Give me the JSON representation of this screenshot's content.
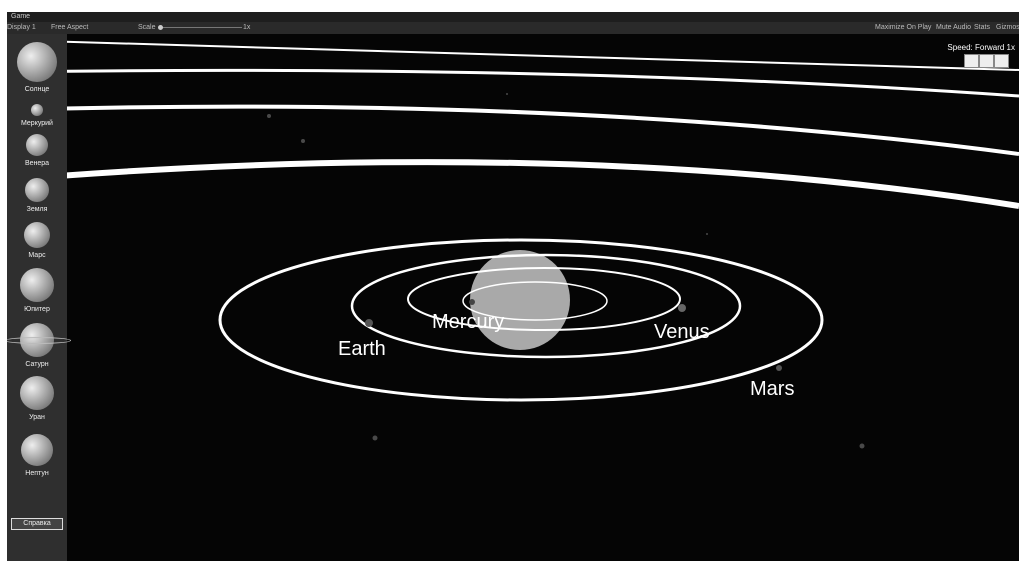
{
  "tab": {
    "title": "Game"
  },
  "toolbar": {
    "display": "Display 1",
    "aspect": "Free Aspect",
    "scale_label": "Scale",
    "scale_value": "1x",
    "right": [
      "Maximize On Play",
      "Mute Audio",
      "Stats",
      "Gizmos"
    ]
  },
  "sidebar": {
    "planets": [
      "Солнце",
      "Меркурий",
      "Венера",
      "Земля",
      "Марс",
      "Юпитер",
      "Сатурн",
      "Уран",
      "Нептун"
    ],
    "help_button": "Справка"
  },
  "hud": {
    "speed": "Speed: Forward 1x"
  },
  "scene": {
    "labels": [
      "Mercury",
      "Venus",
      "Earth",
      "Mars"
    ]
  }
}
